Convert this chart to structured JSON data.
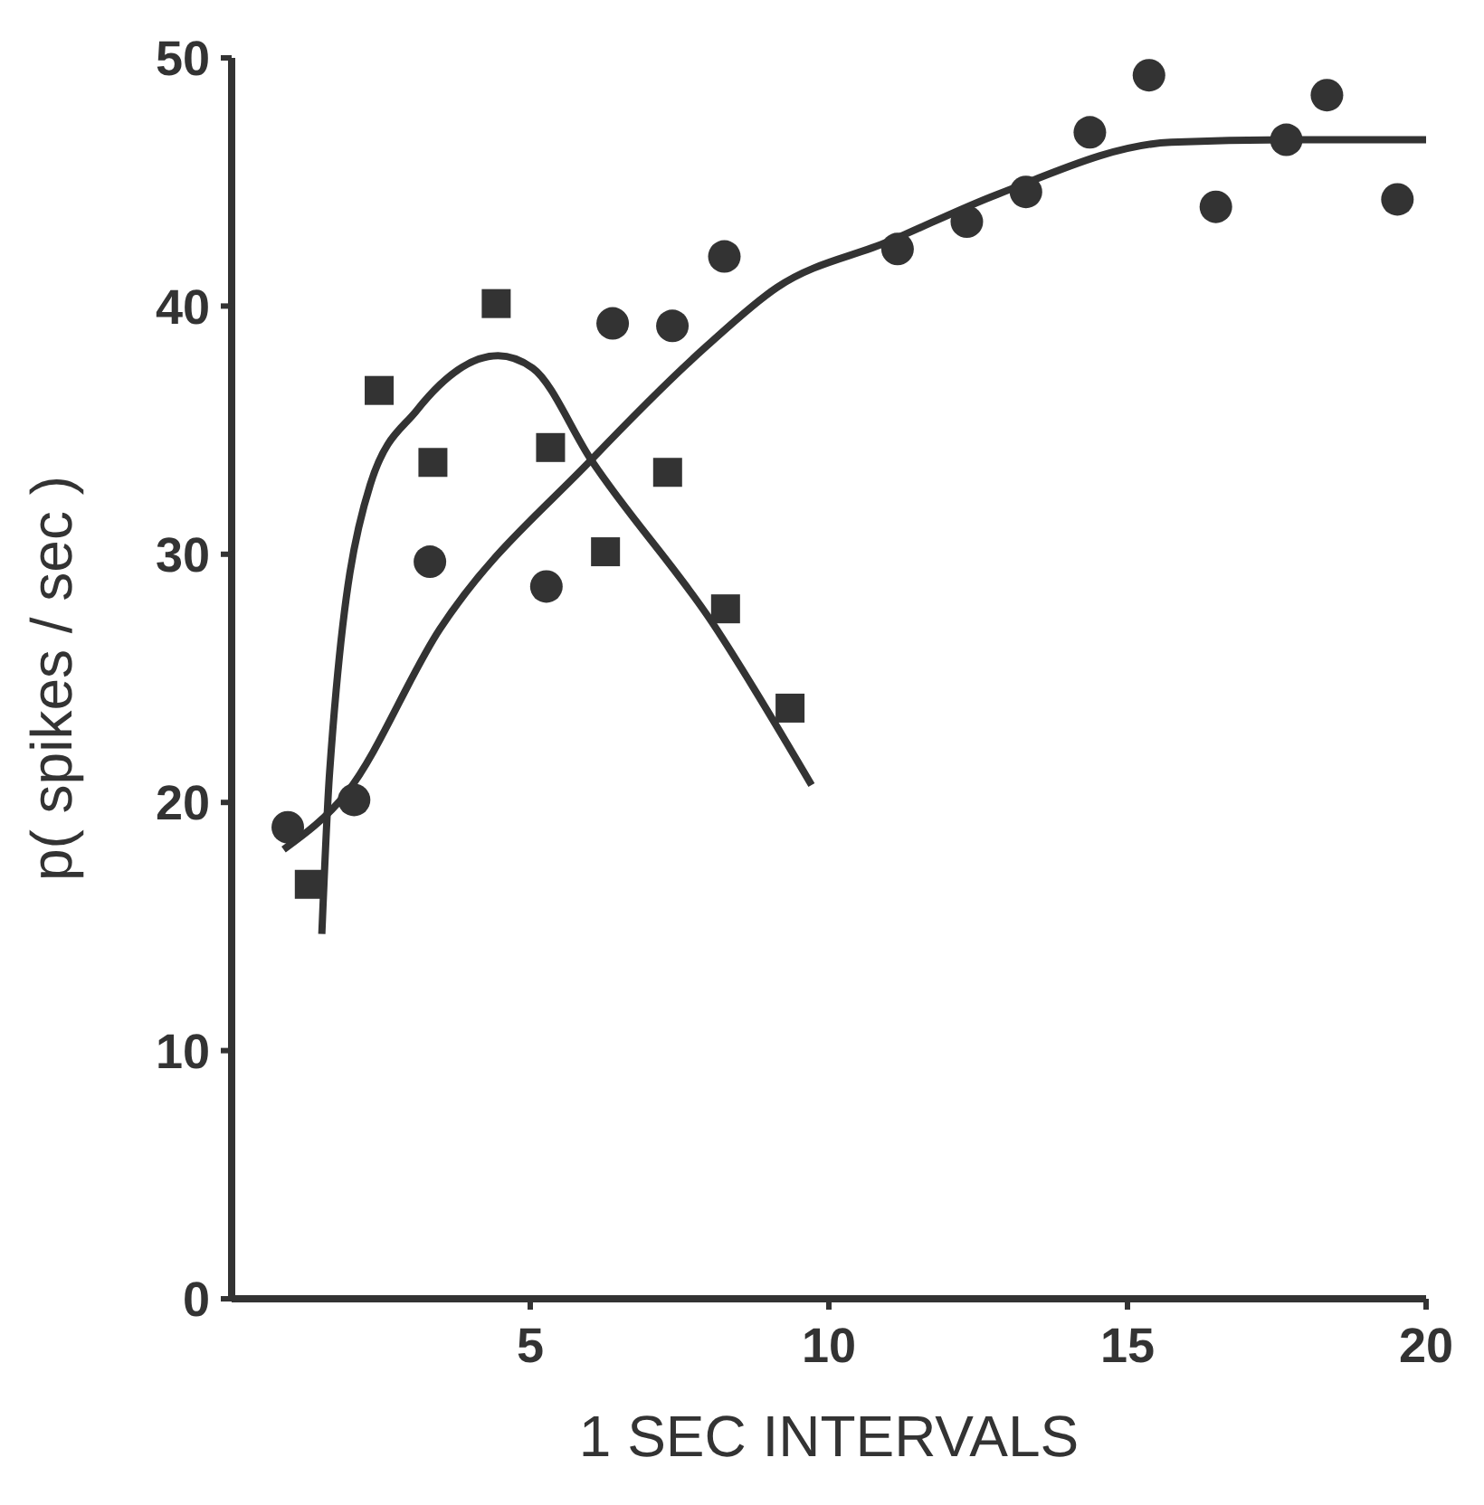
{
  "chart_data": {
    "type": "scatter",
    "xlabel": "1 SEC INTERVALS",
    "ylabel": "p( spikes / sec )",
    "xlim": [
      0,
      20
    ],
    "ylim": [
      0,
      50
    ],
    "xticks": [
      5,
      10,
      15,
      20
    ],
    "yticks": [
      0,
      10,
      20,
      30,
      40,
      50
    ],
    "grid": false,
    "legend": false,
    "series": [
      {
        "marker": "square",
        "color": "#333333",
        "x": [
          1.3,
          2.47,
          3.37,
          4.43,
          5.34,
          6.26,
          7.3,
          8.27,
          9.35
        ],
        "values": [
          16.7,
          36.6,
          33.7,
          40.1,
          34.3,
          30.1,
          33.3,
          27.8,
          23.8
        ]
      },
      {
        "marker": "circle",
        "color": "#333333",
        "x": [
          0.94,
          2.05,
          3.32,
          5.27,
          6.38,
          7.38,
          8.25,
          11.15,
          12.31,
          13.3,
          14.37,
          15.36,
          16.48,
          17.66,
          18.34,
          19.52
        ],
        "values": [
          19.0,
          20.1,
          29.7,
          28.7,
          39.3,
          39.2,
          42.0,
          42.3,
          43.4,
          44.6,
          47.0,
          49.3,
          44.0,
          46.7,
          48.5,
          44.3
        ]
      },
      {
        "type": "line",
        "marker": "none",
        "line_style": "solid",
        "color": "#333333",
        "x": [
          1.51,
          1.64,
          2.32,
          3.1,
          4.46,
          5.04,
          6.02,
          8.06,
          9.71
        ],
        "values": [
          14.7,
          21.2,
          32.8,
          35.8,
          38.0,
          37.5,
          33.8,
          27.2,
          20.7
        ]
      },
      {
        "type": "line",
        "marker": "none",
        "line_style": "solid",
        "color": "#333333",
        "x": [
          0.87,
          1.93,
          3.49,
          6.02,
          7.96,
          9.13,
          11.0,
          12.82,
          15.73,
          17.67,
          20.0
        ],
        "values": [
          18.1,
          20.4,
          27.0,
          33.8,
          38.4,
          40.75,
          42.6,
          44.5,
          46.6,
          46.7,
          46.7
        ]
      }
    ]
  }
}
